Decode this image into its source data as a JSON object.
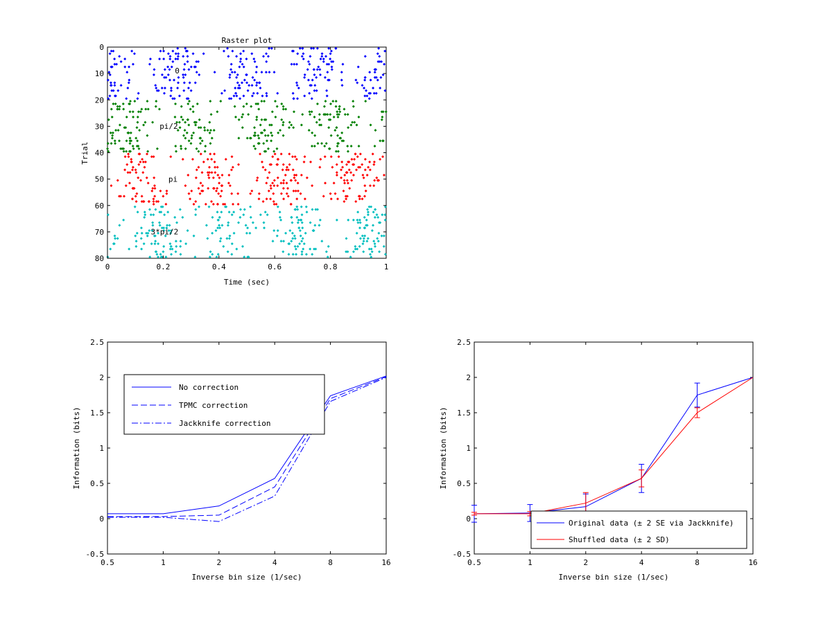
{
  "chart_data": [
    {
      "type": "scatter",
      "title": "Raster plot",
      "xlabel": "Time (sec)",
      "ylabel": "Trial",
      "xlim": [
        0,
        1
      ],
      "ylim": [
        0,
        80
      ],
      "y_reversed": true,
      "xticks": [
        "0",
        "0.2",
        "0.4",
        "0.6",
        "0.8",
        "1"
      ],
      "yticks": [
        "0",
        "10",
        "20",
        "30",
        "40",
        "50",
        "60",
        "70",
        "80"
      ],
      "groups": [
        {
          "label": "0",
          "trials": [
            1,
            20
          ],
          "color": "#0000ff",
          "label_pos": [
            0.25,
            10
          ]
        },
        {
          "label": "pi/2",
          "trials": [
            21,
            40
          ],
          "color": "#008000",
          "label_pos": [
            0.22,
            31
          ]
        },
        {
          "label": "pi",
          "trials": [
            41,
            60
          ],
          "color": "#ff0000",
          "label_pos": [
            0.235,
            51
          ]
        },
        {
          "label": "3*pi/2",
          "trials": [
            61,
            80
          ],
          "color": "#00bfbf",
          "label_pos": [
            0.205,
            71
          ]
        }
      ],
      "spikes_per_trial": 15
    },
    {
      "type": "line",
      "xlabel": "Inverse bin size (1/sec)",
      "ylabel": "Information (bits)",
      "xlog2": true,
      "xticks": [
        "0.5",
        "1",
        "2",
        "4",
        "8",
        "16"
      ],
      "x": [
        0.5,
        1,
        2,
        4,
        8,
        16
      ],
      "yticks": [
        "-0.5",
        "0",
        "0.5",
        "1",
        "1.5",
        "2",
        "2.5"
      ],
      "ylim": [
        -0.5,
        2.5
      ],
      "legend": "upper-left",
      "series": [
        {
          "name": "No correction",
          "values": [
            0.07,
            0.07,
            0.18,
            0.57,
            1.74,
            2.02
          ],
          "color": "#0000ff",
          "dash": "solid"
        },
        {
          "name": "TPMC correction",
          "values": [
            0.03,
            0.03,
            0.05,
            0.45,
            1.7,
            2.01
          ],
          "color": "#0000ff",
          "dash": "dashed"
        },
        {
          "name": "Jackknife correction",
          "values": [
            0.02,
            0.02,
            -0.04,
            0.32,
            1.66,
            2.0
          ],
          "color": "#0000ff",
          "dash": "dashdot"
        }
      ]
    },
    {
      "type": "line",
      "xlabel": "Inverse bin size (1/sec)",
      "ylabel": "Information (bits)",
      "xlog2": true,
      "xticks": [
        "0.5",
        "1",
        "2",
        "4",
        "8",
        "16"
      ],
      "x": [
        0.5,
        1,
        2,
        4,
        8,
        16
      ],
      "yticks": [
        "-0.5",
        "0",
        "0.5",
        "1",
        "1.5",
        "2",
        "2.5"
      ],
      "ylim": [
        -0.5,
        2.5
      ],
      "legend": "lower-right",
      "series": [
        {
          "name": "Original data (± 2 SE via Jackknife)",
          "values": [
            0.07,
            0.08,
            0.17,
            0.57,
            1.75,
            2.0
          ],
          "errors": [
            0.12,
            0.12,
            0.18,
            0.2,
            0.17,
            0.0
          ],
          "color": "#0000ff"
        },
        {
          "name": "Shuffled data (± 2 SD)",
          "values": [
            0.07,
            0.07,
            0.22,
            0.57,
            1.5,
            2.0
          ],
          "errors": [
            0.02,
            0.03,
            0.15,
            0.12,
            0.07,
            0.0
          ],
          "color": "#ff0000"
        }
      ]
    }
  ]
}
